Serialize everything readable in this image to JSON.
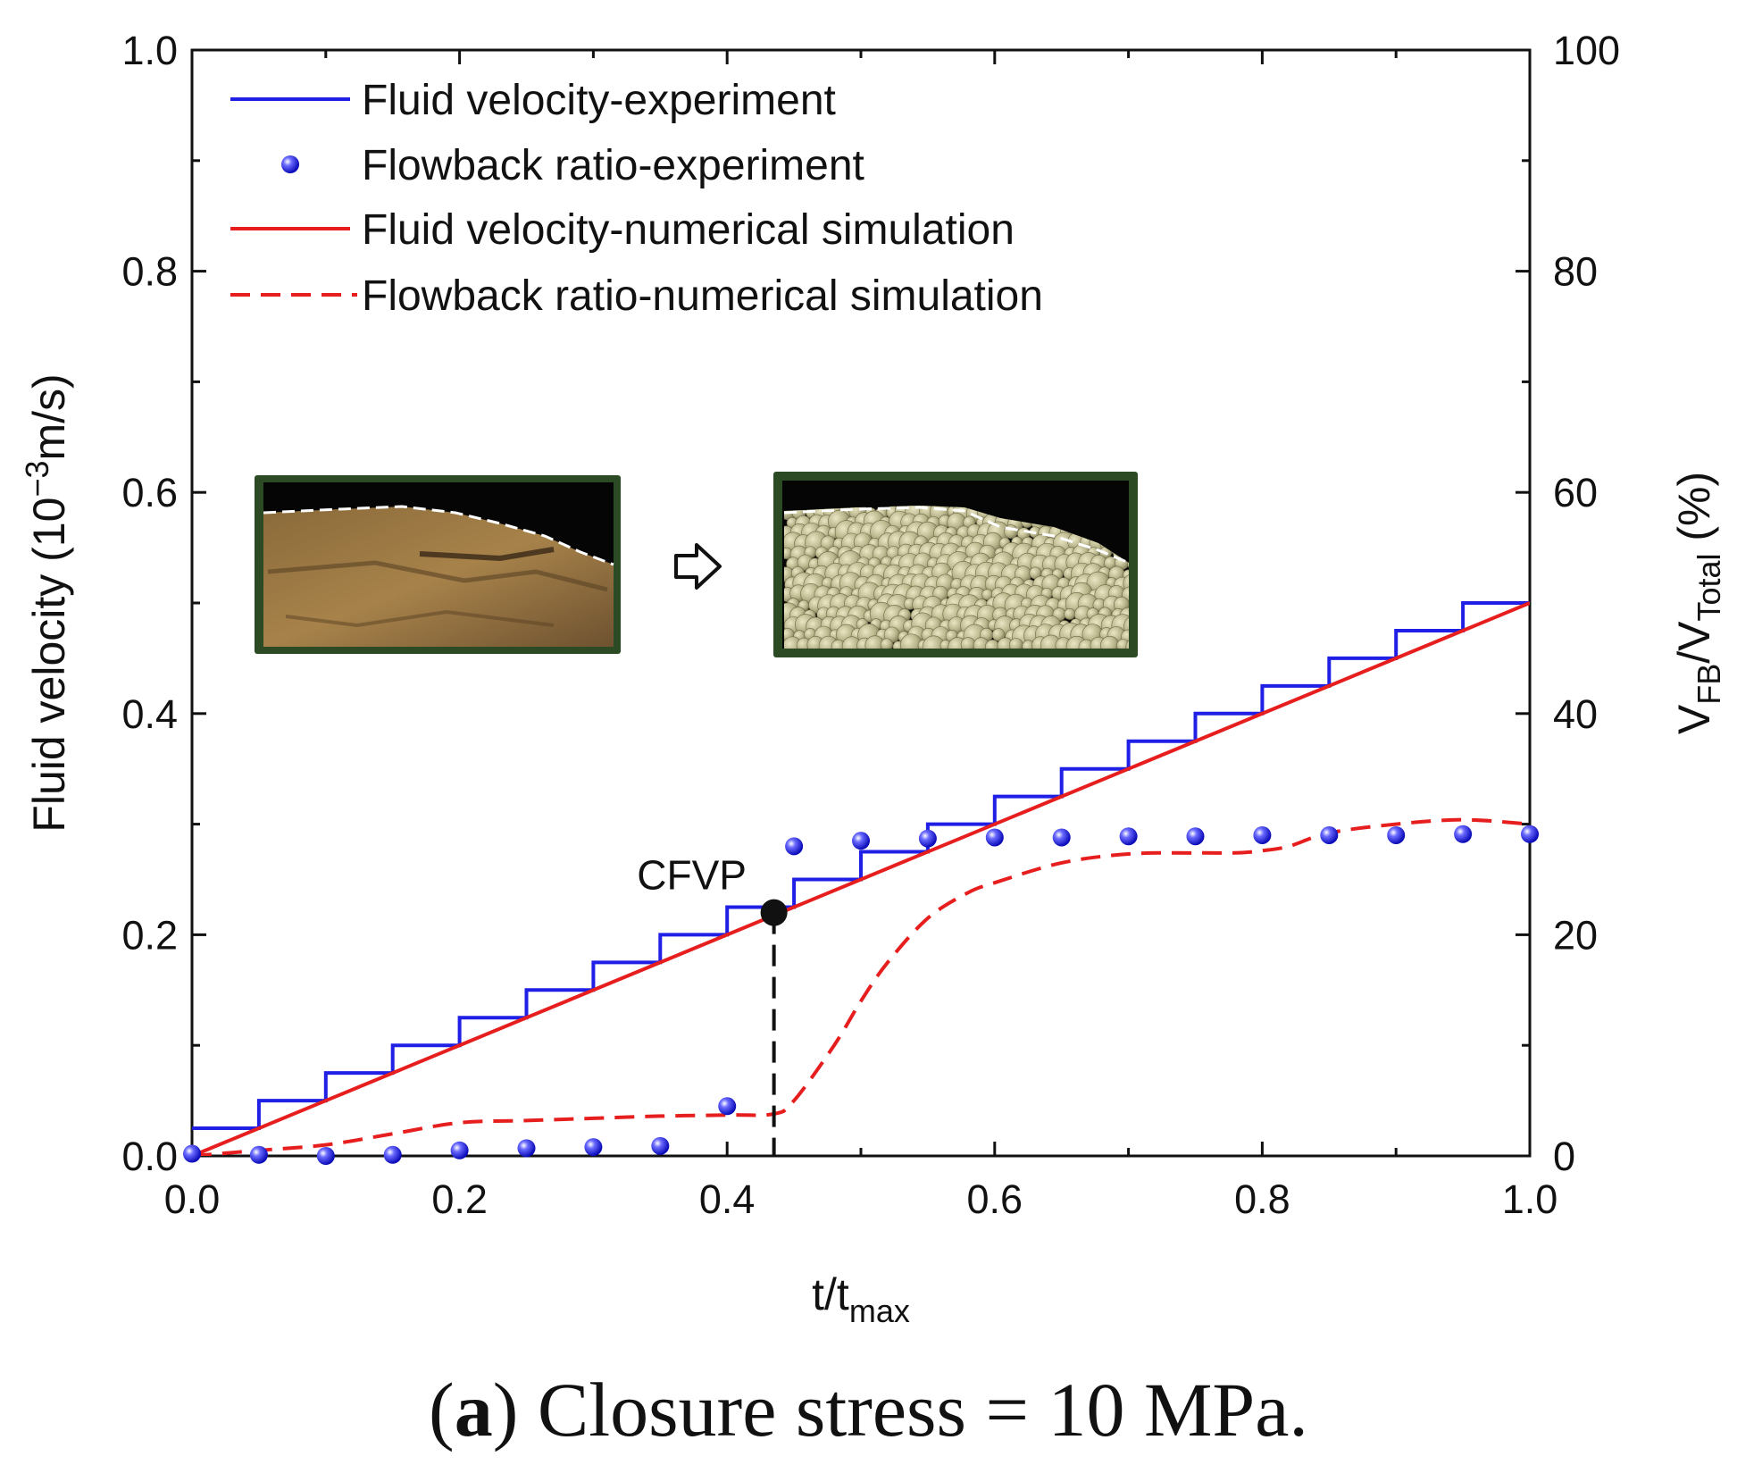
{
  "chart_data": {
    "type": "line",
    "title": "",
    "xlabel": "t/t",
    "xlabel_sub": "max",
    "ylabel": "Fluid velocity (10",
    "ylabel_sup": "−3",
    "ylabel_tail": "m/s)",
    "y2label": "V",
    "y2label_sub1": "FB",
    "y2label_mid": "/V",
    "y2label_sub2": "Total",
    "y2label_tail": " (%)",
    "xlim": [
      0.0,
      1.0
    ],
    "ylim": [
      0.0,
      1.0
    ],
    "y2lim": [
      0,
      100
    ],
    "x_ticks": [
      "0.0",
      "0.2",
      "0.4",
      "0.6",
      "0.8",
      "1.0"
    ],
    "y_ticks": [
      "0.0",
      "0.2",
      "0.4",
      "0.6",
      "0.8",
      "1.0"
    ],
    "y2_ticks": [
      "0",
      "20",
      "40",
      "60",
      "80",
      "100"
    ],
    "grid": false,
    "legend_position": "top-left",
    "series": [
      {
        "name": "Fluid velocity-experiment",
        "axis": "left",
        "style": "step",
        "color": "#1f1fe6",
        "x": [
          0.0,
          0.05,
          0.1,
          0.15,
          0.2,
          0.25,
          0.3,
          0.35,
          0.4,
          0.45,
          0.5,
          0.55,
          0.6,
          0.65,
          0.7,
          0.75,
          0.8,
          0.85,
          0.9,
          0.95,
          1.0
        ],
        "y": [
          0.025,
          0.05,
          0.075,
          0.1,
          0.125,
          0.15,
          0.175,
          0.2,
          0.225,
          0.25,
          0.275,
          0.3,
          0.325,
          0.35,
          0.375,
          0.4,
          0.425,
          0.45,
          0.475,
          0.5,
          0.5
        ]
      },
      {
        "name": "Flowback ratio-experiment",
        "axis": "right",
        "style": "markers",
        "color": "#1f1fe6",
        "x": [
          0.0,
          0.05,
          0.1,
          0.15,
          0.2,
          0.25,
          0.3,
          0.35,
          0.4,
          0.45,
          0.5,
          0.55,
          0.6,
          0.65,
          0.7,
          0.75,
          0.8,
          0.85,
          0.9,
          0.95,
          1.0
        ],
        "y": [
          0.2,
          0.1,
          0.0,
          0.1,
          0.5,
          0.7,
          0.8,
          0.9,
          4.5,
          28.0,
          28.5,
          28.7,
          28.8,
          28.8,
          28.9,
          28.9,
          29.0,
          29.0,
          29.0,
          29.1,
          29.1
        ]
      },
      {
        "name": "Fluid velocity-numerical simulation",
        "axis": "left",
        "style": "solid",
        "color": "#e61e1e",
        "x": [
          0.0,
          1.0
        ],
        "y": [
          0.0,
          0.5
        ]
      },
      {
        "name": "Flowback ratio-numerical simulation",
        "axis": "right",
        "style": "dashed",
        "color": "#e61e1e",
        "x": [
          0.0,
          0.05,
          0.1,
          0.15,
          0.2,
          0.25,
          0.3,
          0.35,
          0.4,
          0.435,
          0.45,
          0.48,
          0.5,
          0.52,
          0.55,
          0.58,
          0.6,
          0.65,
          0.7,
          0.75,
          0.78,
          0.8,
          0.82,
          0.85,
          0.9,
          0.95,
          1.0
        ],
        "y": [
          0.0,
          0.5,
          1.0,
          2.0,
          3.0,
          3.2,
          3.4,
          3.6,
          3.7,
          3.8,
          5.0,
          10.0,
          14.0,
          17.5,
          21.5,
          23.8,
          24.7,
          26.5,
          27.3,
          27.4,
          27.4,
          27.6,
          28.0,
          29.2,
          30.0,
          30.4,
          30.0
        ]
      }
    ],
    "annotations": [
      {
        "text": "CFVP",
        "x": 0.435,
        "y": 0.22
      }
    ]
  },
  "caption": {
    "label": "a",
    "text": "Closure stress = 10 MPa."
  },
  "arrow_icon": "right-arrow-icon"
}
